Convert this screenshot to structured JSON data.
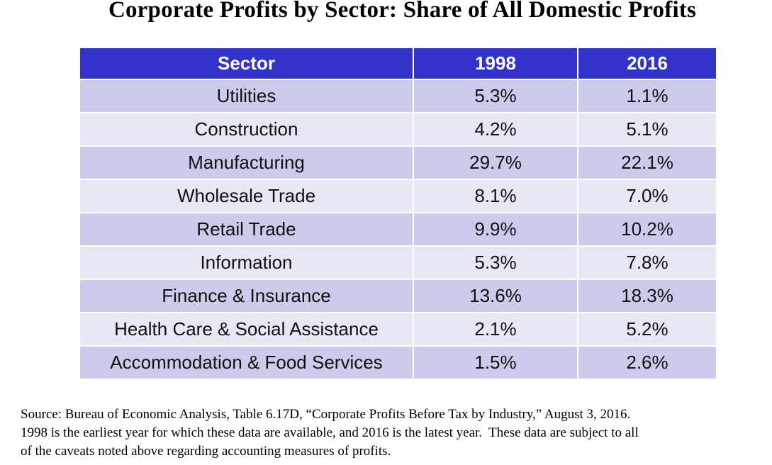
{
  "title": "Corporate Profits by Sector: Share of All Domestic Profits",
  "table": {
    "headers": [
      "Sector",
      "1998",
      "2016"
    ],
    "rows": [
      [
        "Utilities",
        "5.3%",
        "1.1%"
      ],
      [
        "Construction",
        "4.2%",
        "5.1%"
      ],
      [
        "Manufacturing",
        "29.7%",
        "22.1%"
      ],
      [
        "Wholesale Trade",
        "8.1%",
        "7.0%"
      ],
      [
        "Retail Trade",
        "9.9%",
        "10.2%"
      ],
      [
        "Information",
        "5.3%",
        "7.8%"
      ],
      [
        "Finance & Insurance",
        "13.6%",
        "18.3%"
      ],
      [
        "Health Care & Social Assistance",
        "2.1%",
        "5.2%"
      ],
      [
        "Accommodation & Food Services",
        "1.5%",
        "2.6%"
      ]
    ]
  },
  "colors": {
    "header_bg": "#3333cc",
    "row_dark": "#cccbeb",
    "row_light": "#e8e8f5"
  },
  "source_lines": [
    "Source: Bureau of Economic Analysis, Table 6.17D, “Corporate Profits Before Tax by Industry,” August 3, 2016.",
    "1998 is the earliest year for which these data are available, and 2016 is the latest year.  These data are subject to all",
    "of the caveats noted above regarding accounting measures of profits."
  ]
}
